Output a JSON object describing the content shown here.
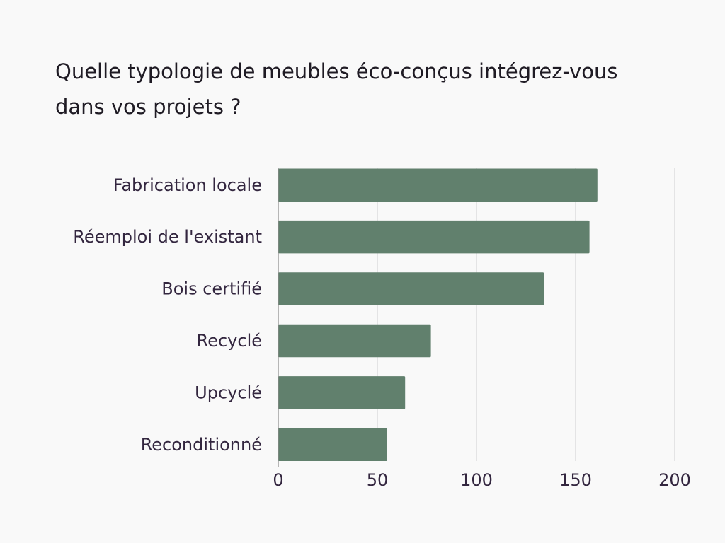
{
  "chart_data": {
    "type": "bar",
    "orientation": "horizontal",
    "title": "Quelle typologie de meubles éco-conçus intégrez-vous dans vos projets ?",
    "categories": [
      "Fabrication locale",
      "Réemploi de l'existant",
      "Bois certifié",
      "Recyclé",
      "Upcyclé",
      "Reconditionné"
    ],
    "values": [
      161,
      157,
      134,
      77,
      64,
      55
    ],
    "xlim": [
      0,
      200
    ],
    "xticks": [
      0,
      50,
      100,
      150,
      200
    ],
    "grid": true,
    "colors": {
      "bar": "#61806d",
      "grid": "#d5d5d8",
      "axis": "#8a8a8a",
      "text": "#33263f",
      "background": "#f9f9f9"
    }
  }
}
